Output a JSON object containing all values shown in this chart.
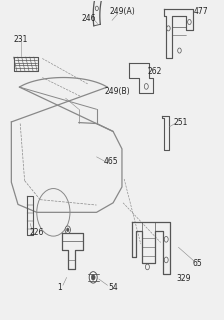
{
  "bg_color": "#f0f0f0",
  "line_color": "#888888",
  "part_color": "#555555",
  "text_color": "#222222",
  "text_fontsize": 5.5,
  "fig_width": 2.24,
  "fig_height": 3.2,
  "dpi": 100
}
